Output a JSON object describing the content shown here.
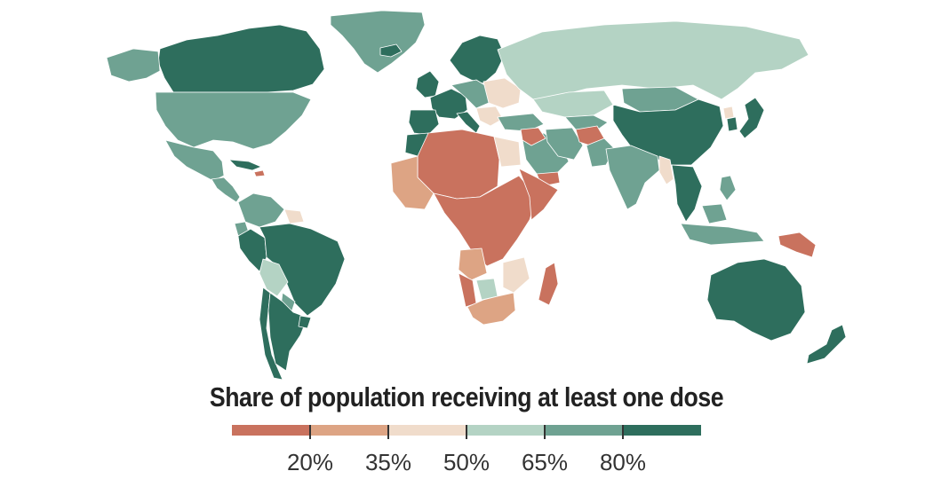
{
  "legend": {
    "title": "Share of population receiving at least one dose",
    "ticks": [
      "20%",
      "35%",
      "50%",
      "65%",
      "80%"
    ],
    "colors": [
      "#c9725e",
      "#dda484",
      "#f0dccb",
      "#b4d3c4",
      "#6fa292",
      "#2e6e5d"
    ]
  },
  "regions": [
    {
      "name": "greenland",
      "class": 4
    },
    {
      "name": "canada",
      "class": 5
    },
    {
      "name": "united-states",
      "class": 4
    },
    {
      "name": "mexico",
      "class": 4
    },
    {
      "name": "central-america",
      "class": 4
    },
    {
      "name": "caribbean",
      "class": 5
    },
    {
      "name": "haiti",
      "class": 0
    },
    {
      "name": "colombia-venezuela",
      "class": 4
    },
    {
      "name": "guianas",
      "class": 2
    },
    {
      "name": "brazil",
      "class": 5
    },
    {
      "name": "peru",
      "class": 5
    },
    {
      "name": "ecuador",
      "class": 4
    },
    {
      "name": "bolivia",
      "class": 3
    },
    {
      "name": "paraguay",
      "class": 4
    },
    {
      "name": "chile",
      "class": 5
    },
    {
      "name": "argentina",
      "class": 5
    },
    {
      "name": "uruguay",
      "class": 5
    },
    {
      "name": "iceland",
      "class": 5
    },
    {
      "name": "scandinavia",
      "class": 5
    },
    {
      "name": "uk-ireland",
      "class": 5
    },
    {
      "name": "western-europe",
      "class": 5
    },
    {
      "name": "iberia",
      "class": 5
    },
    {
      "name": "italy",
      "class": 5
    },
    {
      "name": "central-europe",
      "class": 4
    },
    {
      "name": "eastern-europe",
      "class": 2
    },
    {
      "name": "balkans",
      "class": 2
    },
    {
      "name": "turkey",
      "class": 4
    },
    {
      "name": "russia",
      "class": 3
    },
    {
      "name": "kazakhstan",
      "class": 3
    },
    {
      "name": "central-asia",
      "class": 4
    },
    {
      "name": "mongolia",
      "class": 4
    },
    {
      "name": "china",
      "class": 5
    },
    {
      "name": "korea",
      "class": 5
    },
    {
      "name": "japan",
      "class": 5
    },
    {
      "name": "north-korea",
      "class": 2
    },
    {
      "name": "middle-east",
      "class": 4
    },
    {
      "name": "syria-iraq",
      "class": 0
    },
    {
      "name": "yemen",
      "class": 0
    },
    {
      "name": "iran",
      "class": 4
    },
    {
      "name": "afghanistan",
      "class": 0
    },
    {
      "name": "pakistan",
      "class": 4
    },
    {
      "name": "india",
      "class": 4
    },
    {
      "name": "myanmar",
      "class": 2
    },
    {
      "name": "southeast-asia",
      "class": 5
    },
    {
      "name": "philippines",
      "class": 4
    },
    {
      "name": "indonesia",
      "class": 4
    },
    {
      "name": "papua-new-guinea",
      "class": 0
    },
    {
      "name": "australia",
      "class": 5
    },
    {
      "name": "new-zealand",
      "class": 5
    },
    {
      "name": "morocco-west-sahara",
      "class": 5
    },
    {
      "name": "algeria-libya-sahel",
      "class": 0
    },
    {
      "name": "egypt",
      "class": 2
    },
    {
      "name": "mauritania-west-africa",
      "class": 1
    },
    {
      "name": "central-africa",
      "class": 0
    },
    {
      "name": "east-africa",
      "class": 0
    },
    {
      "name": "angola",
      "class": 1
    },
    {
      "name": "namibia",
      "class": 0
    },
    {
      "name": "botswana",
      "class": 3
    },
    {
      "name": "mozambique",
      "class": 2
    },
    {
      "name": "south-africa",
      "class": 1
    },
    {
      "name": "madagascar",
      "class": 0
    }
  ]
}
